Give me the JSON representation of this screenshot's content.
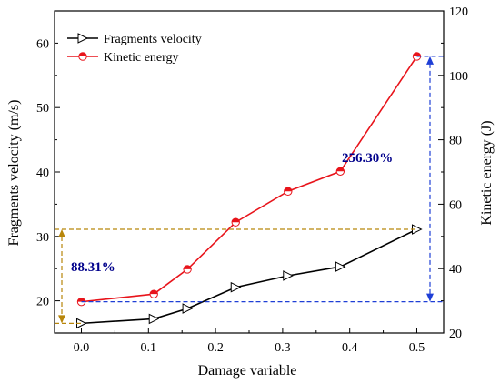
{
  "chart_data": {
    "type": "line",
    "xlabel": "Damage variable",
    "ylabel_left": "Fragments velocity (m/s)",
    "ylabel_right": "Kinetic energy (J)",
    "xlim": [
      -0.04,
      0.54
    ],
    "ylim_left": [
      15,
      65
    ],
    "ylim_right": [
      20,
      120
    ],
    "x_ticks": [
      "0.0",
      "0.1",
      "0.2",
      "0.3",
      "0.4",
      "0.5"
    ],
    "y_left_ticks": [
      "20",
      "30",
      "40",
      "50",
      "60"
    ],
    "y_right_ticks": [
      "20",
      "40",
      "60",
      "80",
      "100",
      "120"
    ],
    "grid": false,
    "legend_position": "top-left",
    "series": [
      {
        "name": "Fragments velocity",
        "axis": "left",
        "color": "#000000",
        "marker": "right-triangle",
        "x": [
          0.0,
          0.108,
          0.158,
          0.23,
          0.308,
          0.386,
          0.5
        ],
        "y": [
          16.5,
          17.2,
          18.8,
          22.1,
          23.9,
          25.3,
          31.1
        ]
      },
      {
        "name": "Kinetic energy",
        "axis": "right",
        "color": "#e8141b",
        "marker": "half-filled-circle",
        "x": [
          0.0,
          0.108,
          0.158,
          0.23,
          0.308,
          0.386,
          0.5
        ],
        "y": [
          29.7,
          32.1,
          39.8,
          54.4,
          64.0,
          70.2,
          105.9
        ]
      }
    ],
    "annotations": [
      {
        "text": "88.31%",
        "color": "#00008b",
        "bracket_color": "#b8860b"
      },
      {
        "text": "256.30%",
        "color": "#00008b",
        "bracket_color": "#1f3fd6"
      }
    ]
  }
}
